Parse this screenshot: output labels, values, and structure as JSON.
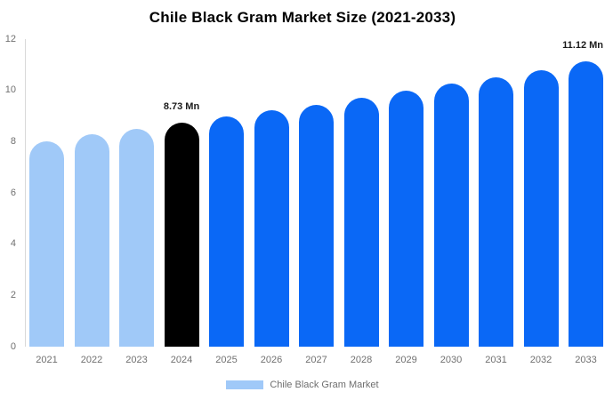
{
  "chart_data": {
    "type": "bar",
    "title": "Chile Black Gram Market Size (2021-2033)",
    "categories": [
      "2021",
      "2022",
      "2023",
      "2024",
      "2025",
      "2026",
      "2027",
      "2028",
      "2029",
      "2030",
      "2031",
      "2032",
      "2033"
    ],
    "values": [
      8.02,
      8.28,
      8.5,
      8.73,
      8.97,
      9.22,
      9.45,
      9.7,
      9.98,
      10.26,
      10.5,
      10.8,
      11.12
    ],
    "value_unit": "Mn",
    "yticks": [
      0,
      2,
      4,
      6,
      8,
      10,
      12
    ],
    "ylim": [
      0,
      12
    ],
    "grid": false,
    "legend_position": "bottom",
    "colors": {
      "historical": "#A0C9F8",
      "current": "#000000",
      "forecast": "#0A68F6",
      "axis_line": "#D9D9D9",
      "axis_text": "#707070",
      "point_label_text": "#1A1A1A",
      "title_text": "#000000"
    },
    "color_keys": [
      "historical",
      "historical",
      "historical",
      "current",
      "forecast",
      "forecast",
      "forecast",
      "forecast",
      "forecast",
      "forecast",
      "forecast",
      "forecast",
      "forecast"
    ],
    "point_labels": [
      {
        "category": "2024",
        "text": "8.73 Mn"
      },
      {
        "category": "2033",
        "text": "11.12 Mn"
      }
    ],
    "legend": {
      "label": "Chile Black Gram Market",
      "swatch_color": "#A0C9F8"
    }
  }
}
